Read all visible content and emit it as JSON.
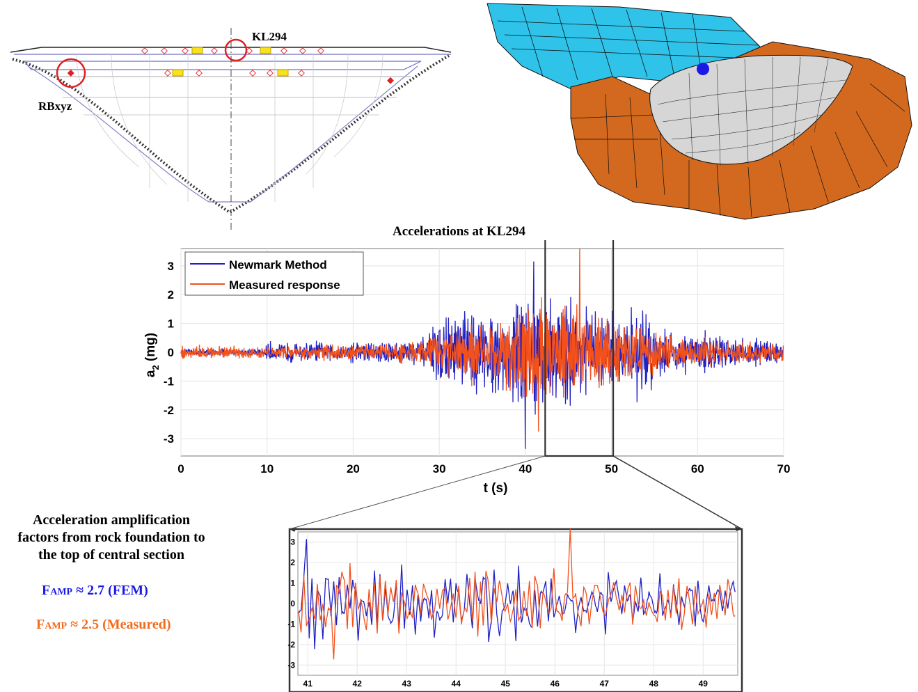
{
  "dam": {
    "label_kl": "KL294",
    "label_rb": "RBxyz"
  },
  "main_title": "Accelerations at KL294",
  "annotation": {
    "lines": [
      "Acceleration amplification",
      "factors from rock foundation to",
      "the top of central section"
    ],
    "fem_prefix": "F",
    "fem_sub": "AMP",
    "fem_value": " ≈ 2.7 (FEM)",
    "meas_prefix": "F",
    "meas_sub": "AMP",
    "meas_value": " ≈ 2.5 (Measured)"
  },
  "colors": {
    "newmark": "#1f1fc4",
    "measured": "#f2511b",
    "water": "#2fc3ea",
    "rock": "#d2691e",
    "dam": "#d6d6d6",
    "marker": "#1a1ae6",
    "highlight": "#e02020"
  },
  "chart_data": [
    {
      "type": "line",
      "xlabel": "t (s)",
      "ylabel": "a",
      "ylabel_sub": "2",
      "ylabel_unit": " (mg)",
      "xlim": [
        0,
        70
      ],
      "ylim": [
        -3.6,
        3.6
      ],
      "xticks": [
        0,
        10,
        20,
        30,
        40,
        50,
        60,
        70
      ],
      "yticks": [
        -3,
        -2,
        -1,
        0,
        1,
        2,
        3
      ],
      "grid": true,
      "legend": "top-left",
      "highlight_window": [
        42.3,
        50.2
      ],
      "series": [
        {
          "name": "Newmark Method",
          "envelope": {
            "t": [
              0,
              9.5,
              10,
              20,
              28,
              31,
              33,
              36,
              38,
              40,
              41,
              42,
              43,
              44,
              45,
              46,
              47,
              48,
              50,
              52,
              54,
              56,
              60,
              70
            ],
            "amp": [
              0.15,
              0.15,
              0.45,
              0.5,
              0.6,
              1.7,
              2.0,
              1.7,
              2.0,
              2.8,
              2.6,
              2.2,
              2.3,
              2.4,
              2.4,
              2.0,
              2.4,
              2.0,
              1.6,
              1.9,
              1.9,
              1.1,
              0.9,
              0.5
            ]
          }
        },
        {
          "name": "Measured response",
          "envelope": {
            "t": [
              0,
              10,
              20,
              28,
              31,
              33,
              36,
              38,
              40,
              41,
              42,
              43,
              44,
              45,
              46,
              47,
              48,
              50,
              52,
              54,
              56,
              60,
              70
            ],
            "amp": [
              0.3,
              0.3,
              0.35,
              0.55,
              1.1,
              1.3,
              1.2,
              1.7,
              2.2,
              2.5,
              2.4,
              2.0,
              2.0,
              2.0,
              2.6,
              2.1,
              1.8,
              1.4,
              1.3,
              1.3,
              0.9,
              0.7,
              0.45
            ]
          }
        }
      ],
      "peaks": {
        "newmark_max": 3.15,
        "newmark_min": -3.35,
        "measured_max": 3.6,
        "measured_min": -2.75
      }
    },
    {
      "type": "line",
      "xlim": [
        40.8,
        49.7
      ],
      "ylim": [
        -3.5,
        3.5
      ],
      "xticks": [
        41,
        42,
        43,
        44,
        45,
        46,
        47,
        48,
        49
      ],
      "yticks": [
        -3,
        -2,
        -1,
        0,
        1,
        2,
        3
      ],
      "grid": true
    }
  ]
}
